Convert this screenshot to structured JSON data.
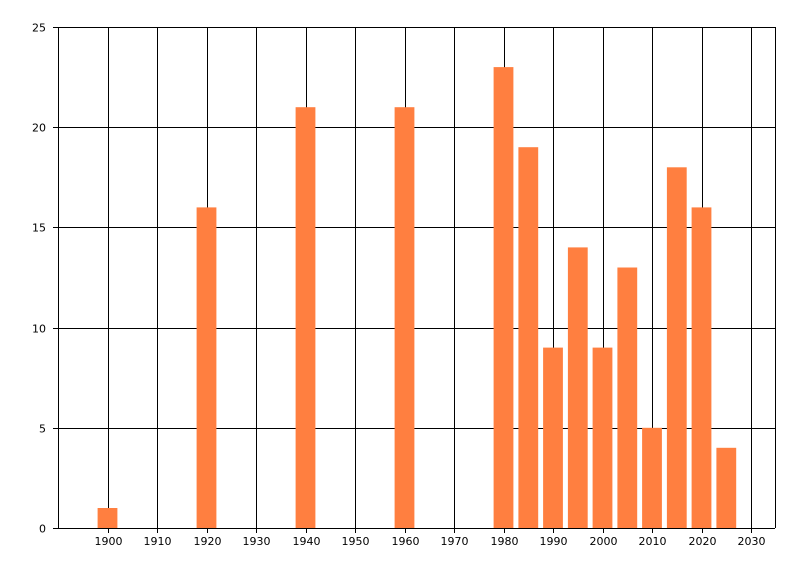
{
  "chart_data": {
    "type": "bar",
    "x": [
      1900,
      1920,
      1940,
      1960,
      1980,
      1985,
      1990,
      1995,
      2000,
      2005,
      2010,
      2015,
      2020,
      2025
    ],
    "values": [
      1,
      16,
      21,
      21,
      23,
      19,
      9,
      14,
      9,
      13,
      5,
      18,
      16,
      4
    ],
    "xlim": [
      1890,
      2030
    ],
    "ylim": [
      0,
      25
    ],
    "x_ticks": [
      1900,
      1910,
      1920,
      1930,
      1940,
      1950,
      1960,
      1970,
      1980,
      1990,
      2000,
      2010,
      2020,
      2030
    ],
    "y_ticks": [
      0,
      5,
      10,
      15,
      20,
      25
    ],
    "bar_width_years": 4,
    "title": "",
    "xlabel": "",
    "ylabel": "",
    "grid": true,
    "legend": "none",
    "colors": {
      "bar": "#FF7F40",
      "grid": "#000000",
      "axis": "#000000"
    }
  }
}
